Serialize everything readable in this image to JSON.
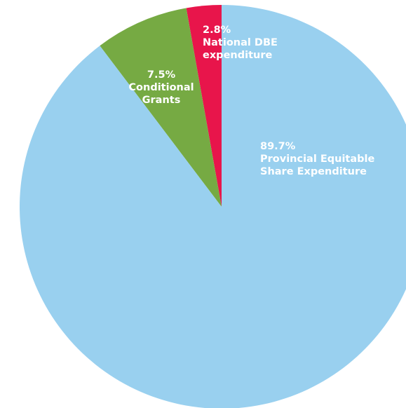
{
  "chart_data": {
    "type": "pie",
    "title": "",
    "series": [
      {
        "values": [
          {
            "label": "National DBE expenditure",
            "value": 2.8,
            "pct_label": "2.8%",
            "label_lines": [
              "National DBE",
              "expenditure"
            ],
            "color": "#e8154b"
          },
          {
            "label": "Conditional Grants",
            "value": 7.5,
            "pct_label": "7.5%",
            "label_lines": [
              "Conditional",
              "Grants"
            ],
            "color": "#76aa43"
          },
          {
            "label": "Provincial Equitable Share Expenditure",
            "value": 89.7,
            "pct_label": "89.7%",
            "label_lines": [
              "Provincial Equitable",
              "Share Expenditure"
            ],
            "color": "#99d0ef"
          }
        ]
      }
    ],
    "legend": "none",
    "grid": false
  }
}
